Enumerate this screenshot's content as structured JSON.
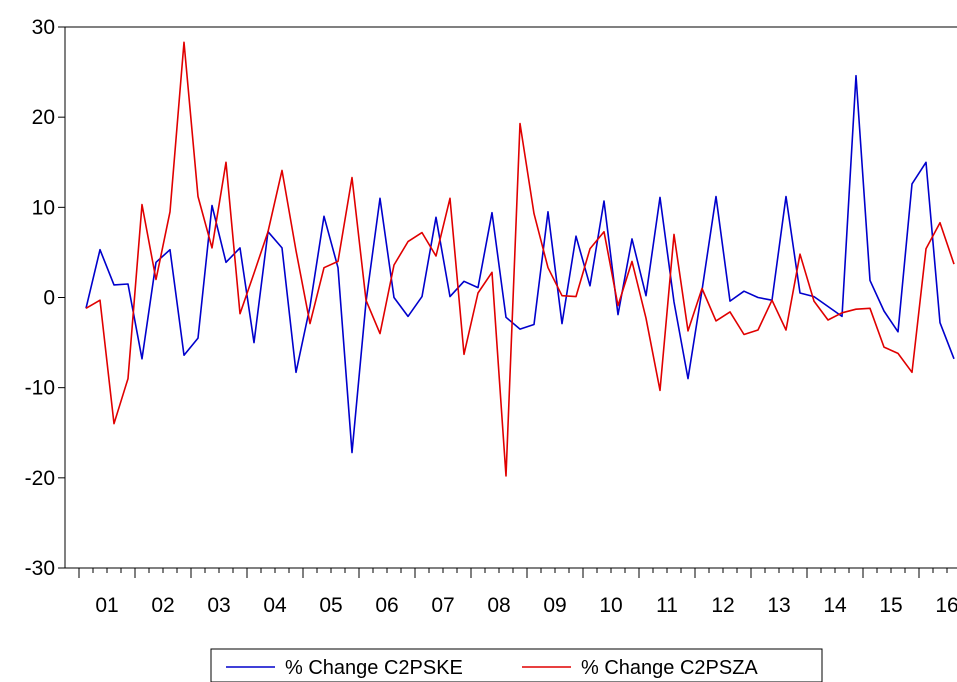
{
  "chart_data": {
    "type": "line",
    "title": "",
    "xlabel": "",
    "ylabel": "",
    "ylim": [
      -30,
      30
    ],
    "y_ticks": [
      30,
      20,
      10,
      0,
      -10,
      -20,
      -30
    ],
    "y_tick_labels": [
      "30",
      "20",
      "10",
      "0",
      "-10",
      "-20",
      "-30"
    ],
    "x_labels": [
      "01",
      "02",
      "03",
      "04",
      "05",
      "06",
      "07",
      "08",
      "09",
      "10",
      "11",
      "12",
      "13",
      "14",
      "15",
      "16"
    ],
    "periods_per_year": 4,
    "grid": false,
    "legend_position": "bottom-center",
    "series": [
      {
        "name": "% Change C2PSKE",
        "color": "#0000cc",
        "values": [
          -1.2,
          5.3,
          1.4,
          1.5,
          -6.8,
          3.9,
          5.3,
          -6.4,
          -4.5,
          10.2,
          3.9,
          5.5,
          -5.0,
          7.3,
          5.5,
          -8.3,
          -1.0,
          9.0,
          3.3,
          -17.2,
          -0.5,
          11.0,
          0.0,
          -2.1,
          0.1,
          8.9,
          0.1,
          1.8,
          1.1,
          9.4,
          -2.2,
          -3.5,
          -3.0,
          9.5,
          -2.9,
          6.8,
          1.3,
          10.7,
          -1.9,
          6.5,
          0.2,
          11.1,
          -0.5,
          -9.0,
          0.8,
          11.2,
          -0.4,
          0.7,
          0.0,
          -0.3,
          11.2,
          0.5,
          0.1,
          -1.0,
          -2.1,
          24.6,
          1.9,
          -1.5,
          -3.8,
          12.6,
          15.0,
          -2.8,
          -6.8
        ]
      },
      {
        "name": "% Change C2PSZA",
        "color": "#e00000",
        "values": [
          -1.2,
          -0.3,
          -14.0,
          -9.0,
          10.3,
          2.0,
          9.5,
          28.3,
          11.2,
          5.5,
          15.0,
          -1.8,
          2.7,
          7.3,
          14.1,
          5.2,
          -2.9,
          3.3,
          4.0,
          13.3,
          -0.3,
          -4.0,
          3.6,
          6.2,
          7.2,
          4.6,
          11.0,
          -6.3,
          0.5,
          2.8,
          -19.8,
          19.3,
          9.3,
          3.3,
          0.2,
          0.1,
          5.4,
          7.3,
          -0.9,
          4.0,
          -2.3,
          -10.3,
          7.0,
          -3.7,
          1.0,
          -2.6,
          -1.6,
          -4.1,
          -3.6,
          -0.3,
          -3.6,
          4.8,
          -0.4,
          -2.5,
          -1.7,
          -1.3,
          -1.2,
          -5.5,
          -6.2,
          -8.3,
          5.4,
          8.3,
          3.7
        ]
      }
    ]
  }
}
